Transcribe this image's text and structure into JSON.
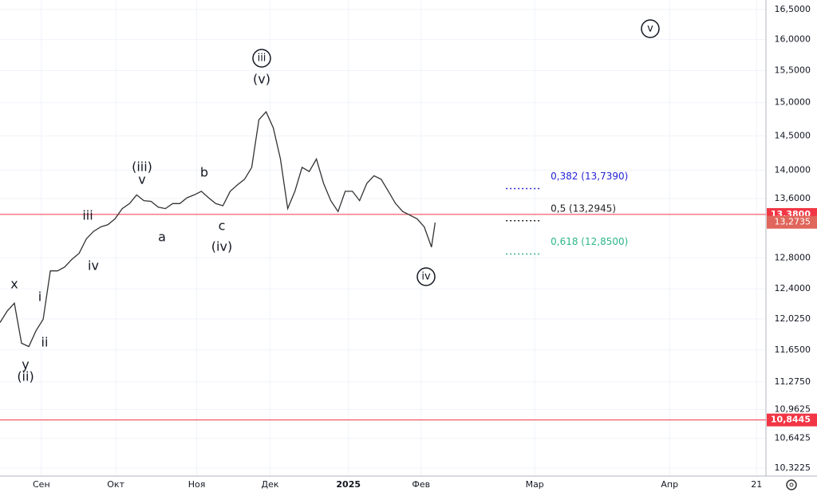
{
  "chart_data": {
    "type": "line",
    "color": "#333333",
    "log_scale": true,
    "grid": true,
    "xlim": [
      0,
      213
    ],
    "ylim": [
      10.24,
      16.66
    ],
    "xticks": [
      {
        "value": 11.5,
        "label": "Сен"
      },
      {
        "value": 32.2,
        "label": "Окт"
      },
      {
        "value": 54.7,
        "label": "Ноя"
      },
      {
        "value": 75.1,
        "label": "Дек"
      },
      {
        "value": 96.9,
        "label": "2025"
      },
      {
        "value": 117.1,
        "label": "Фев"
      },
      {
        "value": 148.7,
        "label": "Мар"
      },
      {
        "value": 186.2,
        "label": "Апр"
      },
      {
        "value": 210.4,
        "label": "21"
      }
    ],
    "yticks": [
      {
        "value": 16.5,
        "label": "16,5000"
      },
      {
        "value": 16.0,
        "label": "16,0000"
      },
      {
        "value": 15.5,
        "label": "15,5000"
      },
      {
        "value": 15.0,
        "label": "15,0000"
      },
      {
        "value": 14.5,
        "label": "14,5000"
      },
      {
        "value": 14.0,
        "label": "14,0000"
      },
      {
        "value": 13.6,
        "label": "13,6000"
      },
      {
        "value": 12.8,
        "label": "12,8000"
      },
      {
        "value": 12.4,
        "label": "12,4000"
      },
      {
        "value": 12.025,
        "label": "12,0250"
      },
      {
        "value": 11.65,
        "label": "11,6500"
      },
      {
        "value": 11.275,
        "label": "11,2750"
      },
      {
        "value": 10.9625,
        "label": "10,9625"
      },
      {
        "value": 10.6425,
        "label": "10,6425"
      },
      {
        "value": 10.3225,
        "label": "10,3225"
      }
    ],
    "series": [
      {
        "x": [
          0,
          2,
          4,
          6,
          8,
          10,
          12,
          14,
          16,
          18,
          20,
          22,
          24,
          26,
          28,
          30,
          32,
          34,
          36,
          38,
          40,
          42,
          44,
          46,
          48,
          50,
          52,
          54,
          56,
          58,
          60,
          62,
          64,
          66,
          68,
          70,
          72,
          74,
          76,
          78,
          80,
          82,
          84,
          86,
          88,
          90,
          92,
          94,
          96,
          98,
          100,
          102,
          104,
          106,
          108,
          110,
          112,
          114,
          116,
          118,
          120,
          121
        ],
        "values": [
          11.98,
          12.12,
          12.22,
          11.73,
          11.69,
          11.88,
          12.02,
          12.63,
          12.63,
          12.68,
          12.78,
          12.86,
          13.05,
          13.15,
          13.21,
          13.24,
          13.32,
          13.46,
          13.53,
          13.65,
          13.57,
          13.56,
          13.48,
          13.46,
          13.53,
          13.53,
          13.61,
          13.65,
          13.7,
          13.61,
          13.53,
          13.5,
          13.7,
          13.79,
          13.87,
          14.04,
          14.74,
          14.86,
          14.62,
          14.16,
          13.46,
          13.7,
          14.04,
          13.98,
          14.16,
          13.81,
          13.57,
          13.42,
          13.7,
          13.7,
          13.57,
          13.81,
          13.92,
          13.87,
          13.7,
          13.53,
          13.42,
          13.37,
          13.32,
          13.21,
          12.94,
          13.27
        ]
      }
    ],
    "price_lines": [
      {
        "value": 13.38,
        "label": "13,3800",
        "color": "#f23645"
      },
      {
        "value": 10.8445,
        "label": "10,8445",
        "color": "#f23645"
      }
    ],
    "last_price": {
      "value": 13.2735,
      "label": "13,2735",
      "color": "#e0655a"
    },
    "fib_x": [
      140.7,
      150.7
    ],
    "fib_levels": [
      {
        "value": 13.739,
        "label": "0,382 (13,7390)",
        "color": "#2424d6"
      },
      {
        "value": 13.2945,
        "label": "0,5 (13,2945)",
        "color": "#222222"
      },
      {
        "value": 12.85,
        "label": "0,618 (12,8500)",
        "color": "#2bb58a"
      }
    ],
    "annotations": [
      {
        "text": "x",
        "circled": false
      },
      {
        "text": "i",
        "circled": false
      },
      {
        "text": "ii",
        "circled": false
      },
      {
        "text": "y",
        "circled": false
      },
      {
        "text": "(ii)",
        "circled": false
      },
      {
        "text": "iii",
        "circled": false
      },
      {
        "text": "iv",
        "circled": false
      },
      {
        "text": "(iii)",
        "circled": false
      },
      {
        "text": "v",
        "circled": false
      },
      {
        "text": "a",
        "circled": false
      },
      {
        "text": "b",
        "circled": false
      },
      {
        "text": "c",
        "circled": false
      },
      {
        "text": "(iv)",
        "circled": false
      },
      {
        "text": "iii",
        "circled": true
      },
      {
        "text": "(v)",
        "circled": false
      },
      {
        "text": "iv",
        "circled": true
      },
      {
        "text": "v",
        "circled": true
      }
    ]
  }
}
